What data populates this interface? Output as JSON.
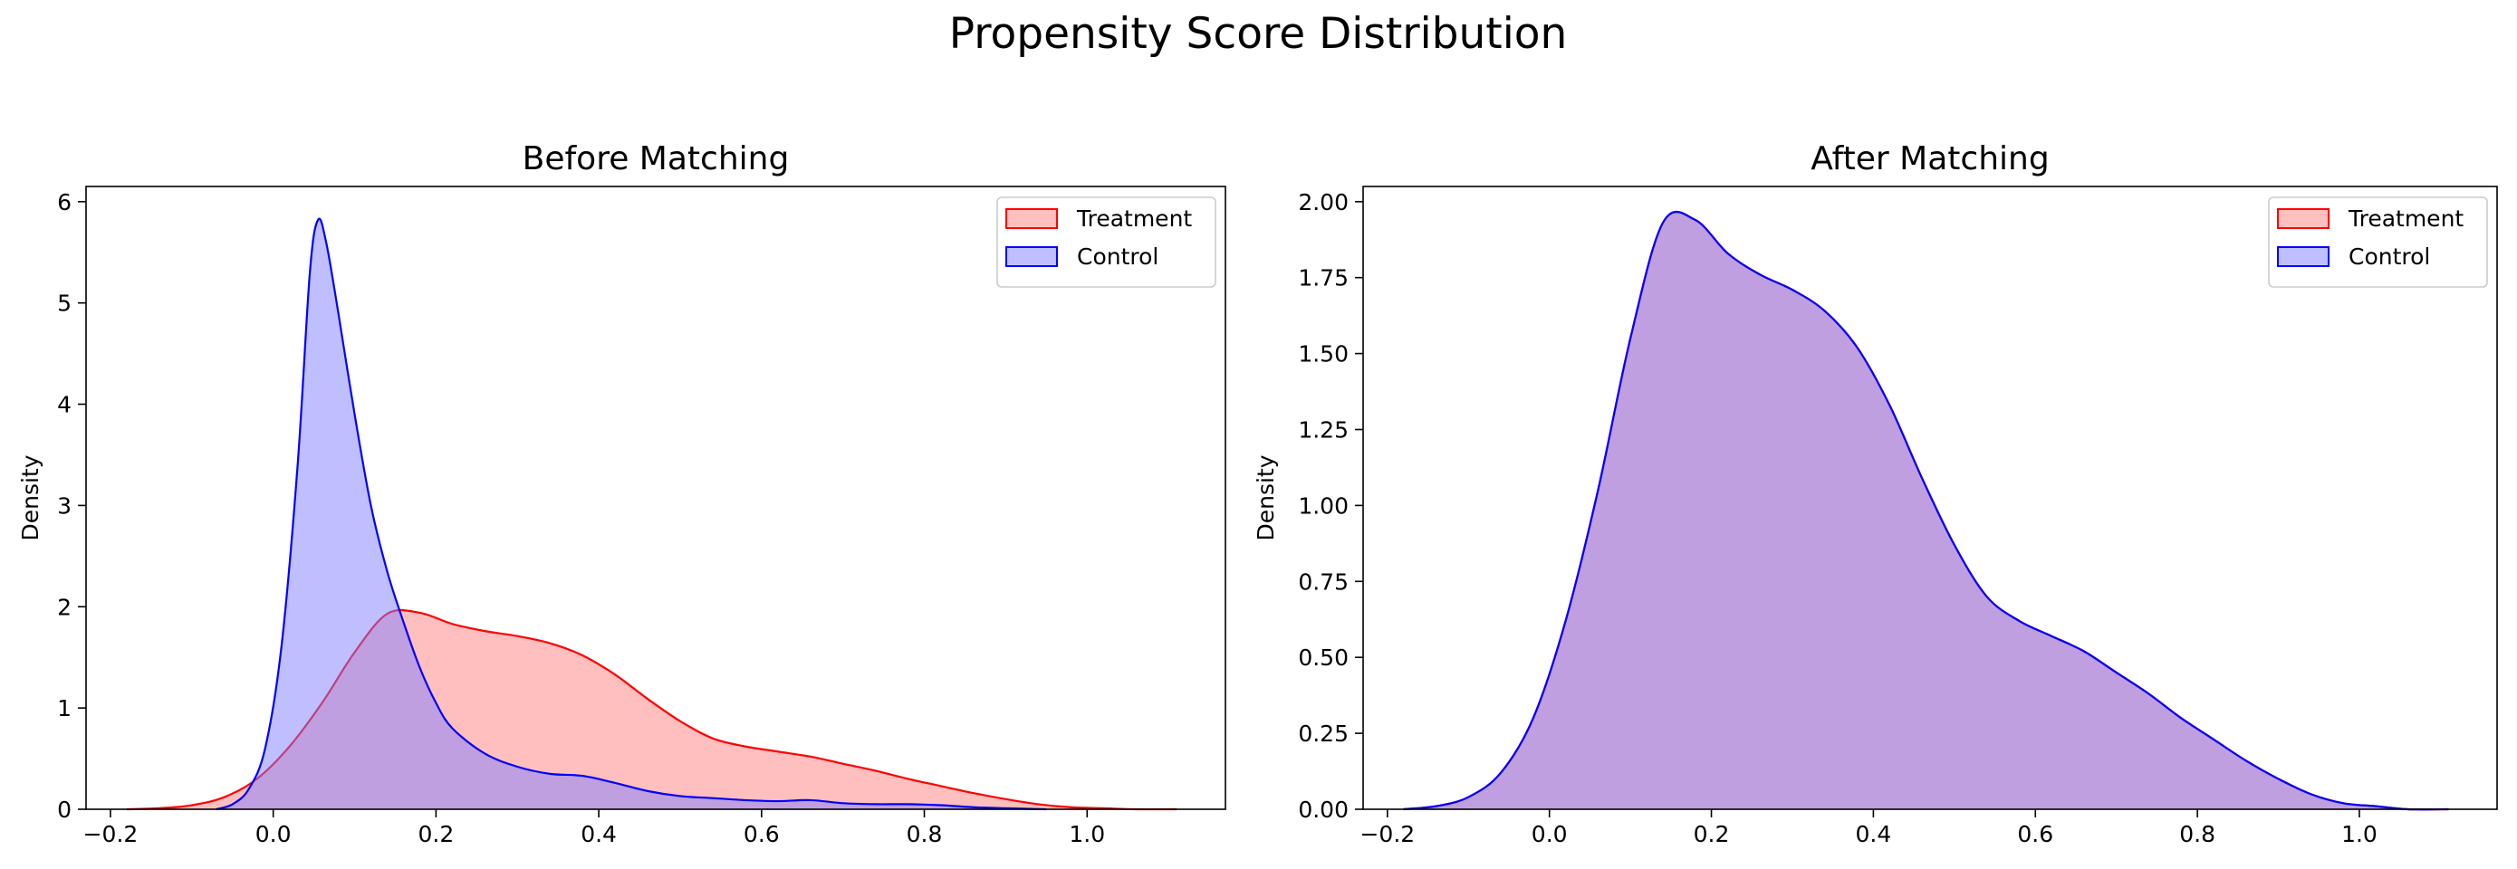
{
  "figure": {
    "suptitle": "Propensity Score Distribution"
  },
  "chart_data": [
    {
      "type": "area",
      "title": "Before Matching",
      "xlabel": "",
      "ylabel": "Density",
      "xlim": [
        -0.23,
        1.17
      ],
      "ylim": [
        0,
        6.15
      ],
      "xticks": [
        -0.2,
        0.0,
        0.2,
        0.4,
        0.6,
        0.8,
        1.0
      ],
      "xtick_labels": [
        "−0.2",
        "0.0",
        "0.2",
        "0.4",
        "0.6",
        "0.8",
        "1.0"
      ],
      "yticks": [
        0,
        1,
        2,
        3,
        4,
        5,
        6
      ],
      "ytick_labels": [
        "0",
        "1",
        "2",
        "3",
        "4",
        "5",
        "6"
      ],
      "legend_position": "top-right",
      "series": [
        {
          "name": "Treatment",
          "color": "#ff0000",
          "fill": "#ff8080",
          "fill_opacity": 0.5,
          "points": [
            [
              -0.18,
              0.0
            ],
            [
              -0.14,
              0.01
            ],
            [
              -0.1,
              0.04
            ],
            [
              -0.06,
              0.12
            ],
            [
              -0.02,
              0.3
            ],
            [
              0.02,
              0.62
            ],
            [
              0.06,
              1.05
            ],
            [
              0.1,
              1.55
            ],
            [
              0.14,
              1.93
            ],
            [
              0.18,
              1.94
            ],
            [
              0.22,
              1.83
            ],
            [
              0.26,
              1.76
            ],
            [
              0.3,
              1.71
            ],
            [
              0.34,
              1.64
            ],
            [
              0.38,
              1.52
            ],
            [
              0.42,
              1.33
            ],
            [
              0.46,
              1.09
            ],
            [
              0.5,
              0.87
            ],
            [
              0.54,
              0.7
            ],
            [
              0.58,
              0.62
            ],
            [
              0.62,
              0.57
            ],
            [
              0.66,
              0.52
            ],
            [
              0.7,
              0.45
            ],
            [
              0.74,
              0.38
            ],
            [
              0.78,
              0.3
            ],
            [
              0.82,
              0.23
            ],
            [
              0.86,
              0.16
            ],
            [
              0.9,
              0.1
            ],
            [
              0.94,
              0.05
            ],
            [
              0.98,
              0.02
            ],
            [
              1.02,
              0.01
            ],
            [
              1.06,
              0.0
            ],
            [
              1.11,
              0.0
            ]
          ]
        },
        {
          "name": "Control",
          "color": "#0000ff",
          "fill": "#8080ff",
          "fill_opacity": 0.5,
          "points": [
            [
              -0.07,
              0.0
            ],
            [
              -0.05,
              0.05
            ],
            [
              -0.03,
              0.2
            ],
            [
              -0.01,
              0.6
            ],
            [
              0.01,
              1.6
            ],
            [
              0.03,
              3.4
            ],
            [
              0.045,
              5.3
            ],
            [
              0.055,
              5.82
            ],
            [
              0.065,
              5.6
            ],
            [
              0.08,
              4.9
            ],
            [
              0.1,
              3.9
            ],
            [
              0.12,
              3.0
            ],
            [
              0.14,
              2.35
            ],
            [
              0.16,
              1.85
            ],
            [
              0.18,
              1.4
            ],
            [
              0.2,
              1.05
            ],
            [
              0.22,
              0.8
            ],
            [
              0.26,
              0.55
            ],
            [
              0.3,
              0.42
            ],
            [
              0.34,
              0.35
            ],
            [
              0.38,
              0.33
            ],
            [
              0.42,
              0.26
            ],
            [
              0.46,
              0.18
            ],
            [
              0.5,
              0.13
            ],
            [
              0.54,
              0.11
            ],
            [
              0.58,
              0.09
            ],
            [
              0.62,
              0.08
            ],
            [
              0.66,
              0.09
            ],
            [
              0.7,
              0.06
            ],
            [
              0.74,
              0.05
            ],
            [
              0.78,
              0.05
            ],
            [
              0.82,
              0.04
            ],
            [
              0.86,
              0.02
            ],
            [
              0.9,
              0.01
            ],
            [
              0.95,
              0.0
            ]
          ]
        }
      ]
    },
    {
      "type": "area",
      "title": "After Matching",
      "xlabel": "",
      "ylabel": "Density",
      "xlim": [
        -0.23,
        1.17
      ],
      "ylim": [
        0,
        2.05
      ],
      "xticks": [
        -0.2,
        0.0,
        0.2,
        0.4,
        0.6,
        0.8,
        1.0
      ],
      "xtick_labels": [
        "−0.2",
        "0.0",
        "0.2",
        "0.4",
        "0.6",
        "0.8",
        "1.0"
      ],
      "yticks": [
        0,
        0.25,
        0.5,
        0.75,
        1.0,
        1.25,
        1.5,
        1.75,
        2.0
      ],
      "ytick_labels": [
        "0.00",
        "0.25",
        "0.50",
        "0.75",
        "1.00",
        "1.25",
        "1.50",
        "1.75",
        "2.00"
      ],
      "legend_position": "top-right",
      "series": [
        {
          "name": "Treatment",
          "color": "#ff0000",
          "fill": "#ff8080",
          "fill_opacity": 0.5,
          "points": [
            [
              -0.18,
              0.0
            ],
            [
              -0.14,
              0.01
            ],
            [
              -0.1,
              0.04
            ],
            [
              -0.06,
              0.12
            ],
            [
              -0.02,
              0.3
            ],
            [
              0.02,
              0.62
            ],
            [
              0.06,
              1.05
            ],
            [
              0.1,
              1.55
            ],
            [
              0.14,
              1.93
            ],
            [
              0.18,
              1.94
            ],
            [
              0.22,
              1.83
            ],
            [
              0.26,
              1.76
            ],
            [
              0.3,
              1.71
            ],
            [
              0.34,
              1.64
            ],
            [
              0.38,
              1.52
            ],
            [
              0.42,
              1.33
            ],
            [
              0.46,
              1.09
            ],
            [
              0.5,
              0.87
            ],
            [
              0.54,
              0.7
            ],
            [
              0.58,
              0.62
            ],
            [
              0.62,
              0.57
            ],
            [
              0.66,
              0.52
            ],
            [
              0.7,
              0.45
            ],
            [
              0.74,
              0.38
            ],
            [
              0.78,
              0.3
            ],
            [
              0.82,
              0.23
            ],
            [
              0.86,
              0.16
            ],
            [
              0.9,
              0.1
            ],
            [
              0.94,
              0.05
            ],
            [
              0.98,
              0.02
            ],
            [
              1.02,
              0.01
            ],
            [
              1.06,
              0.0
            ],
            [
              1.11,
              0.0
            ]
          ]
        },
        {
          "name": "Control",
          "color": "#0000ff",
          "fill": "#8080ff",
          "fill_opacity": 0.5,
          "points": [
            [
              -0.18,
              0.0
            ],
            [
              -0.14,
              0.01
            ],
            [
              -0.1,
              0.04
            ],
            [
              -0.06,
              0.12
            ],
            [
              -0.02,
              0.3
            ],
            [
              0.02,
              0.62
            ],
            [
              0.06,
              1.05
            ],
            [
              0.1,
              1.55
            ],
            [
              0.14,
              1.93
            ],
            [
              0.18,
              1.94
            ],
            [
              0.22,
              1.83
            ],
            [
              0.26,
              1.76
            ],
            [
              0.3,
              1.71
            ],
            [
              0.34,
              1.64
            ],
            [
              0.38,
              1.52
            ],
            [
              0.42,
              1.33
            ],
            [
              0.46,
              1.09
            ],
            [
              0.5,
              0.87
            ],
            [
              0.54,
              0.7
            ],
            [
              0.58,
              0.62
            ],
            [
              0.62,
              0.57
            ],
            [
              0.66,
              0.52
            ],
            [
              0.7,
              0.45
            ],
            [
              0.74,
              0.38
            ],
            [
              0.78,
              0.3
            ],
            [
              0.82,
              0.23
            ],
            [
              0.86,
              0.16
            ],
            [
              0.9,
              0.1
            ],
            [
              0.94,
              0.05
            ],
            [
              0.98,
              0.02
            ],
            [
              1.02,
              0.01
            ],
            [
              1.06,
              0.0
            ],
            [
              1.11,
              0.0
            ]
          ]
        }
      ]
    }
  ]
}
